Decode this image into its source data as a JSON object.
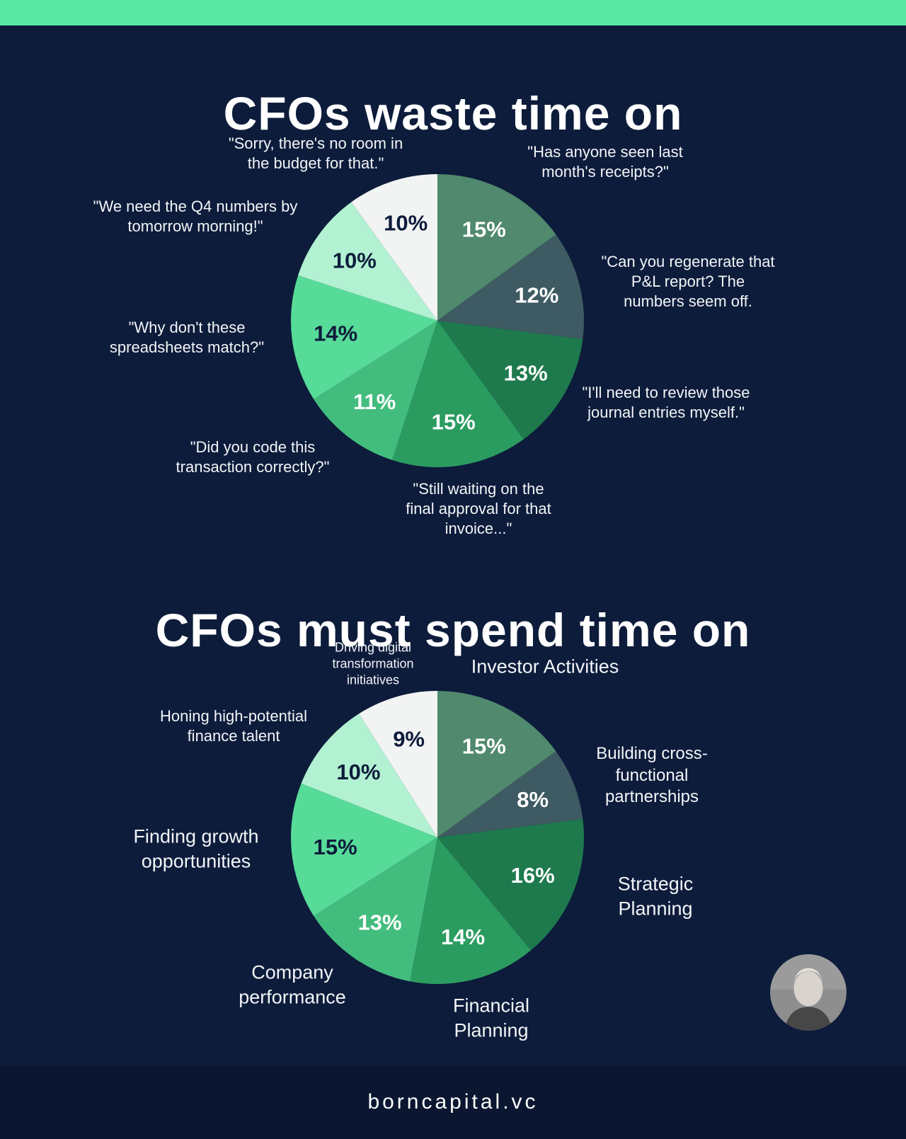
{
  "page": {
    "title_waste": "CFOs waste time on",
    "title_must": "CFOs must spend time on",
    "footer": "borncapital.vc"
  },
  "colors": {
    "accent_green": "#57E6A3",
    "background": "#0D1C3B",
    "footer_background": "#0B1731",
    "text": "#FFFFFF"
  },
  "chart_data": [
    {
      "type": "pie",
      "title": "CFOs waste time on",
      "unit": "%",
      "start_angle": -90,
      "direction": "clockwise",
      "slices": [
        {
          "label": "\"Has anyone seen last month's receipts?\"",
          "value": 15,
          "color": "#50896D",
          "pct_color": "#FFFFFF"
        },
        {
          "label": "\"Can you regenerate that P&L report? The numbers seem off.",
          "value": 12,
          "color": "#3E5A62",
          "pct_color": "#FFFFFF"
        },
        {
          "label": "\"I'll need to review those journal entries myself.\"",
          "value": 13,
          "color": "#1E7A4D",
          "pct_color": "#FFFFFF"
        },
        {
          "label": "\"Still waiting on the final approval for that invoice...\"",
          "value": 15,
          "color": "#2B9C60",
          "pct_color": "#FFFFFF"
        },
        {
          "label": "\"Did you code this transaction correctly?\"",
          "value": 11,
          "color": "#43BD7D",
          "pct_color": "#FFFFFF"
        },
        {
          "label": "\"Why don't these spreadsheets match?\"",
          "value": 14,
          "color": "#57DB98",
          "pct_color": "#0D1C3B"
        },
        {
          "label": "\"We need the Q4 numbers by tomorrow morning!\"",
          "value": 10,
          "color": "#B2F1D2",
          "pct_color": "#0D1C3B"
        },
        {
          "label": "\"Sorry, there's no room in the budget for that.\"",
          "value": 10,
          "color": "#F2F3F3",
          "pct_color": "#0D1C3B"
        }
      ]
    },
    {
      "type": "pie",
      "title": "CFOs must spend time on",
      "unit": "%",
      "start_angle": -90,
      "direction": "clockwise",
      "slices": [
        {
          "label": "Investor Activities",
          "value": 15,
          "color": "#50896D",
          "pct_color": "#FFFFFF"
        },
        {
          "label": "Building cross-functional partnerships",
          "value": 8,
          "color": "#3E5A62",
          "pct_color": "#FFFFFF"
        },
        {
          "label": "Strategic Planning",
          "value": 16,
          "color": "#1E7A4D",
          "pct_color": "#FFFFFF"
        },
        {
          "label": "Financial Planning",
          "value": 14,
          "color": "#2B9C60",
          "pct_color": "#FFFFFF"
        },
        {
          "label": "Company performance",
          "value": 13,
          "color": "#43BD7D",
          "pct_color": "#FFFFFF"
        },
        {
          "label": "Finding growth opportunities",
          "value": 15,
          "color": "#57DB98",
          "pct_color": "#0D1C3B"
        },
        {
          "label": "Honing high-potential finance talent",
          "value": 10,
          "color": "#B2F1D2",
          "pct_color": "#0D1C3B"
        },
        {
          "label": "Driving digital transformation initiatives",
          "value": 9,
          "color": "#F2F3F3",
          "pct_color": "#0D1C3B"
        }
      ]
    }
  ]
}
